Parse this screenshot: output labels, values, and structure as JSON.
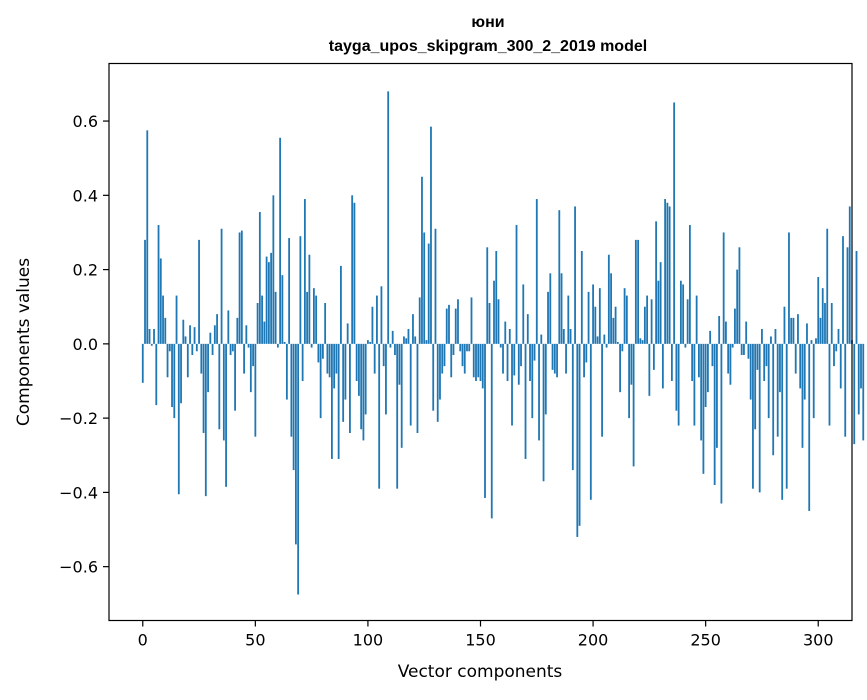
{
  "chart_data": {
    "type": "bar",
    "title": "юни",
    "subtitle": "tayga_upos_skipgram_300_2_2019 model",
    "xlabel": "Vector components",
    "ylabel": "Components values",
    "xlim": [
      -15,
      315
    ],
    "ylim": [
      -0.745,
      0.755
    ],
    "xticks": [
      0,
      50,
      100,
      150,
      200,
      250,
      300
    ],
    "yticks": [
      -0.6,
      -0.4,
      -0.2,
      0.0,
      0.2,
      0.4,
      0.6
    ],
    "xtick_labels": [
      "0",
      "50",
      "100",
      "150",
      "200",
      "250",
      "300"
    ],
    "ytick_labels": [
      "−0.6",
      "−0.4",
      "−0.2",
      "0.0",
      "0.2",
      "0.4",
      "0.6"
    ],
    "bar_color": "#1f77b4",
    "grid": false,
    "values": [
      -0.105,
      0.28,
      0.575,
      0.04,
      -0.005,
      0.04,
      -0.165,
      0.32,
      0.23,
      0.13,
      0.07,
      -0.09,
      -0.02,
      -0.17,
      -0.2,
      0.13,
      -0.405,
      -0.16,
      0.065,
      0.02,
      -0.09,
      0.05,
      -0.03,
      0.045,
      -0.02,
      0.28,
      -0.08,
      -0.24,
      -0.41,
      -0.13,
      0.03,
      -0.03,
      0.05,
      0.08,
      -0.23,
      0.31,
      -0.26,
      -0.385,
      0.09,
      -0.03,
      -0.02,
      -0.18,
      0.07,
      0.3,
      0.305,
      -0.08,
      0.05,
      -0.01,
      -0.13,
      -0.06,
      -0.25,
      0.11,
      0.355,
      0.13,
      0.06,
      0.235,
      0.22,
      0.245,
      0.4,
      0.14,
      -0.01,
      0.555,
      0.185,
      0.005,
      -0.15,
      0.285,
      -0.25,
      -0.34,
      -0.54,
      -0.675,
      0.29,
      -0.1,
      0.39,
      0.14,
      0.24,
      -0.01,
      0.15,
      0.13,
      -0.05,
      -0.2,
      -0.04,
      0.11,
      -0.08,
      -0.09,
      -0.31,
      -0.12,
      -0.08,
      -0.31,
      0.21,
      -0.21,
      -0.15,
      0.055,
      -0.24,
      0.4,
      0.38,
      -0.1,
      -0.14,
      -0.23,
      -0.26,
      -0.19,
      0.01,
      0.005,
      0.1,
      -0.08,
      0.13,
      -0.39,
      0.155,
      -0.06,
      -0.19,
      0.68,
      -0.01,
      0.035,
      -0.03,
      -0.39,
      -0.11,
      -0.28,
      0.02,
      0.015,
      0.04,
      -0.22,
      0.08,
      0.02,
      -0.24,
      0.125,
      0.45,
      0.3,
      0.01,
      0.27,
      0.585,
      -0.18,
      0.31,
      -0.21,
      -0.15,
      -0.08,
      -0.06,
      0.095,
      0.105,
      -0.09,
      -0.03,
      0.095,
      0.12,
      -0.02,
      -0.06,
      -0.08,
      -0.02,
      -0.02,
      0.125,
      -0.09,
      -0.1,
      -0.09,
      -0.1,
      -0.12,
      -0.415,
      0.26,
      0.11,
      -0.47,
      0.17,
      0.25,
      0.12,
      -0.01,
      -0.08,
      0.06,
      -0.1,
      0.04,
      -0.22,
      -0.085,
      0.32,
      -0.11,
      -0.06,
      0.16,
      -0.31,
      0.08,
      -0.1,
      -0.2,
      -0.045,
      0.39,
      -0.26,
      0.025,
      -0.37,
      -0.19,
      0.14,
      0.19,
      -0.07,
      -0.08,
      -0.09,
      0.36,
      0.19,
      0.04,
      -0.08,
      0.13,
      0.04,
      -0.34,
      0.37,
      -0.52,
      -0.49,
      0.25,
      -0.09,
      -0.05,
      0.14,
      -0.42,
      0.16,
      0.1,
      0.02,
      0.15,
      -0.25,
      0.025,
      -0.01,
      0.24,
      0.19,
      0.07,
      0.1,
      0.005,
      -0.13,
      -0.02,
      0.15,
      0.13,
      -0.2,
      -0.11,
      -0.33,
      0.28,
      0.28,
      0.015,
      0.01,
      0.1,
      0.13,
      -0.14,
      0.12,
      -0.07,
      0.33,
      0.17,
      0.22,
      -0.12,
      0.39,
      0.38,
      0.37,
      -0.1,
      0.65,
      -0.18,
      -0.22,
      0.17,
      0.16,
      -0.01,
      0.12,
      0.32,
      -0.1,
      -0.22,
      0.13,
      -0.09,
      -0.26,
      -0.35,
      -0.17,
      -0.13,
      0.035,
      -0.06,
      -0.38,
      -0.28,
      0.075,
      -0.43,
      0.3,
      0.06,
      -0.08,
      -0.11,
      -0.01,
      0.095,
      0.2,
      0.26,
      -0.03,
      -0.03,
      0.06,
      -0.04,
      -0.15,
      -0.39,
      -0.23,
      -0.07,
      -0.4,
      0.04,
      -0.1,
      -0.06,
      -0.2,
      0.02,
      -0.3,
      0.04,
      -0.25,
      -0.13,
      -0.42,
      0.1,
      -0.39,
      0.3,
      0.07,
      0.07,
      -0.08,
      0.08,
      -0.12,
      -0.28,
      -0.15,
      0.055,
      -0.45,
      0.01,
      -0.2,
      0.015,
      0.18,
      0.07,
      0.15,
      0.11,
      0.31,
      -0.22,
      0.11,
      -0.06,
      -0.02,
      0.04,
      -0.12,
      0.29,
      -0.25,
      0.26,
      0.37,
      0.01,
      -0.27,
      0.25,
      -0.19,
      -0.12,
      -0.26
    ]
  }
}
